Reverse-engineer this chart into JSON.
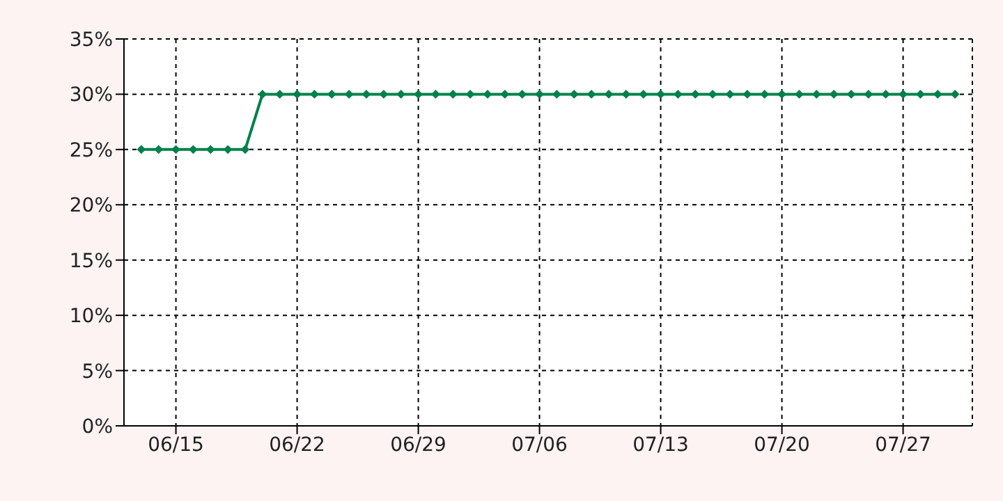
{
  "chart_data": {
    "type": "line",
    "x": [
      "--06-13",
      "--06-14",
      "--06-15",
      "--06-16",
      "--06-17",
      "--06-18",
      "--06-19",
      "--06-20",
      "--06-21",
      "--06-22",
      "--06-23",
      "--06-24",
      "--06-25",
      "--06-26",
      "--06-27",
      "--06-28",
      "--06-29",
      "--06-30",
      "--07-01",
      "--07-02",
      "--07-03",
      "--07-04",
      "--07-05",
      "--07-06",
      "--07-07",
      "--07-08",
      "--07-09",
      "--07-10",
      "--07-11",
      "--07-12",
      "--07-13",
      "--07-14",
      "--07-15",
      "--07-16",
      "--07-17",
      "--07-18",
      "--07-19",
      "--07-20",
      "--07-21",
      "--07-22",
      "--07-23",
      "--07-24",
      "--07-25",
      "--07-26",
      "--07-27",
      "--07-28",
      "--07-29",
      "--07-30"
    ],
    "series": [
      {
        "color": "#00804a",
        "values": [
          25,
          25,
          25,
          25,
          25,
          25,
          25,
          30,
          30,
          30,
          30,
          30,
          30,
          30,
          30,
          30,
          30,
          30,
          30,
          30,
          30,
          30,
          30,
          30,
          30,
          30,
          30,
          30,
          30,
          30,
          30,
          30,
          30,
          30,
          30,
          30,
          30,
          30,
          30,
          30,
          30,
          30,
          30,
          30,
          30,
          30,
          30,
          30
        ]
      }
    ],
    "xlim": [
      "--06-12",
      "--07-31"
    ],
    "xticks": [
      {
        "value": "--06-15",
        "label": "06/15"
      },
      {
        "value": "--06-22",
        "label": "06/22"
      },
      {
        "value": "--06-29",
        "label": "06/29"
      },
      {
        "value": "--07-06",
        "label": "07/06"
      },
      {
        "value": "--07-13",
        "label": "07/13"
      },
      {
        "value": "--07-20",
        "label": "07/20"
      },
      {
        "value": "--07-27",
        "label": "07/27"
      }
    ],
    "ylim": [
      0,
      35
    ],
    "yticks": [
      {
        "value": 0,
        "label": "0%"
      },
      {
        "value": 5,
        "label": "5%"
      },
      {
        "value": 10,
        "label": "10%"
      },
      {
        "value": 15,
        "label": "15%"
      },
      {
        "value": 20,
        "label": "20%"
      },
      {
        "value": 25,
        "label": "25%"
      },
      {
        "value": 30,
        "label": "30%"
      },
      {
        "value": 35,
        "label": "35%"
      }
    ],
    "grid": true,
    "marker": "diamond",
    "line_style": "solid"
  }
}
